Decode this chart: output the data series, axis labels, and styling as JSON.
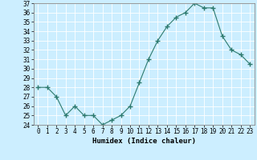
{
  "title": "",
  "xlabel": "Humidex (Indice chaleur)",
  "ylabel": "",
  "x": [
    0,
    1,
    2,
    3,
    4,
    5,
    6,
    7,
    8,
    9,
    10,
    11,
    12,
    13,
    14,
    15,
    16,
    17,
    18,
    19,
    20,
    21,
    22,
    23
  ],
  "y": [
    28,
    28,
    27,
    25,
    26,
    25,
    25,
    24,
    24.5,
    25,
    26,
    28.5,
    31,
    33,
    34.5,
    35.5,
    36,
    37,
    36.5,
    36.5,
    33.5,
    32,
    31.5,
    30.5
  ],
  "line_color": "#2d7a6e",
  "marker": "+",
  "marker_size": 4,
  "marker_color": "#2d7a6e",
  "bg_color": "#cceeff",
  "grid_color": "#ffffff",
  "ylim": [
    24,
    37
  ],
  "xlim": [
    -0.5,
    23.5
  ],
  "yticks": [
    24,
    25,
    26,
    27,
    28,
    29,
    30,
    31,
    32,
    33,
    34,
    35,
    36,
    37
  ],
  "xticks": [
    0,
    1,
    2,
    3,
    4,
    5,
    6,
    7,
    8,
    9,
    10,
    11,
    12,
    13,
    14,
    15,
    16,
    17,
    18,
    19,
    20,
    21,
    22,
    23
  ],
  "tick_fontsize": 5.5,
  "label_fontsize": 6.5
}
